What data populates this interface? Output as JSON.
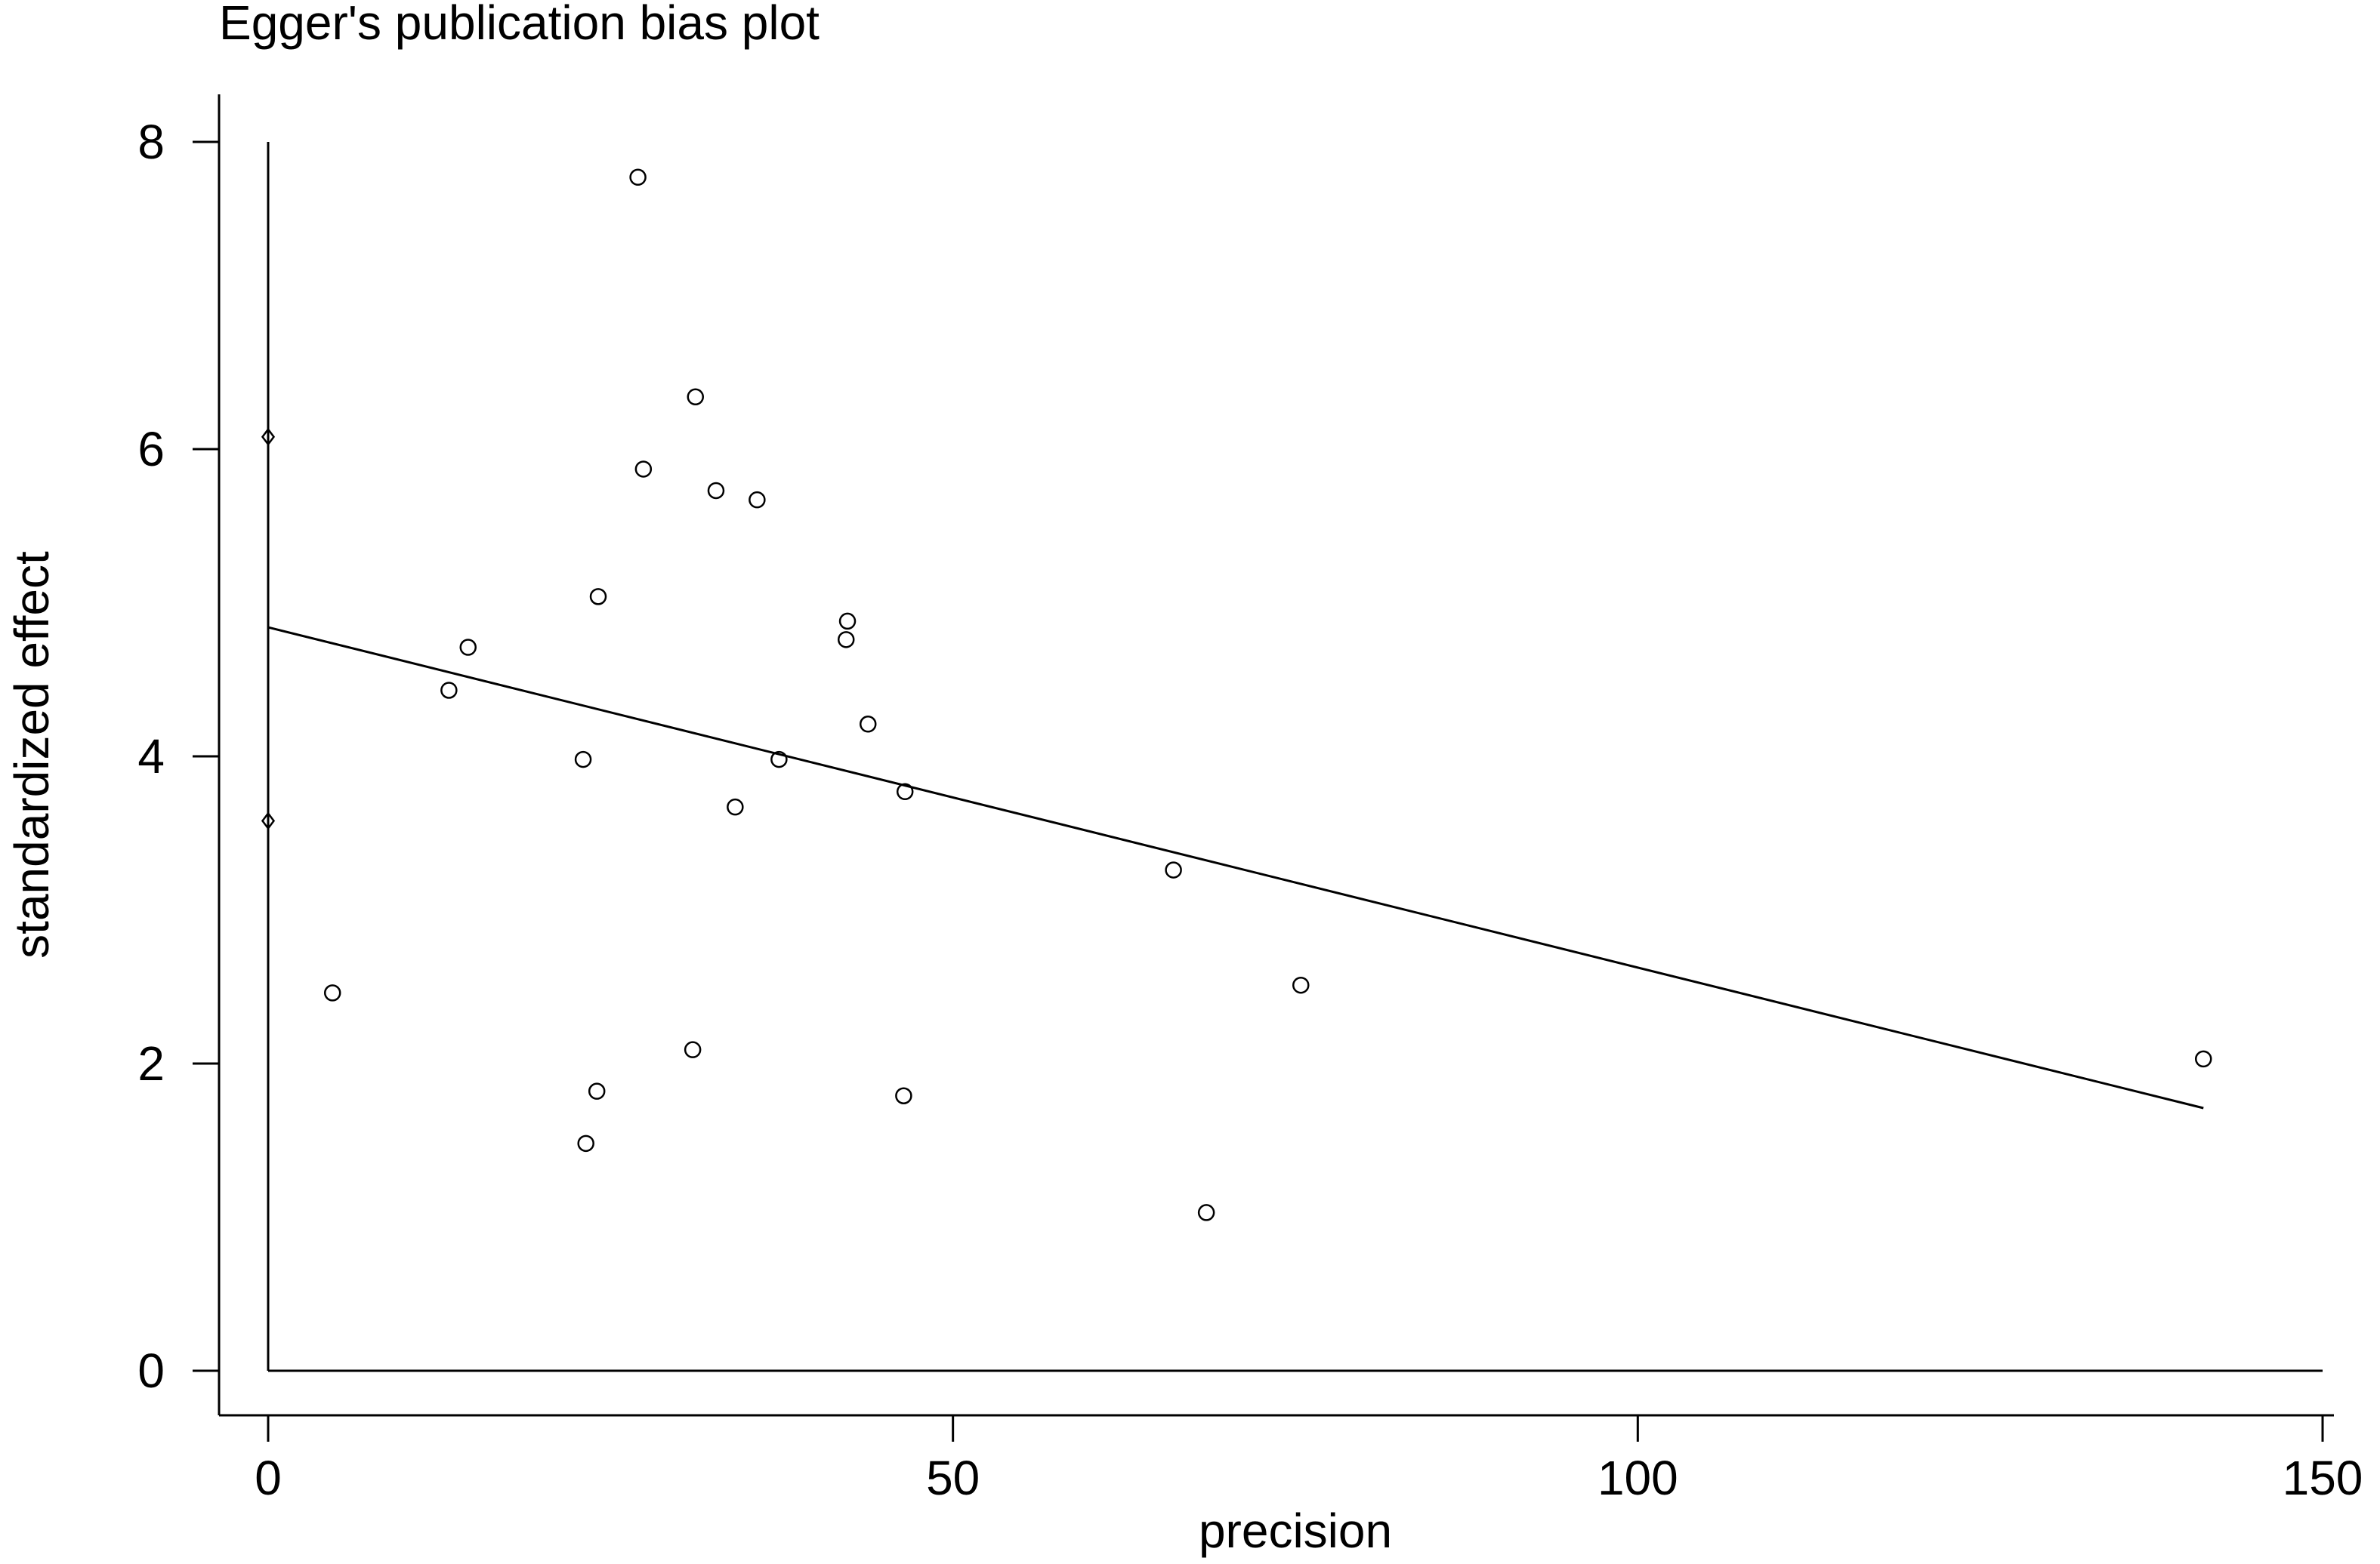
{
  "chart_data": {
    "type": "scatter",
    "title": "Egger's publication bias plot",
    "xlabel": "precision",
    "ylabel": "standardized effect",
    "xlim": [
      0,
      150
    ],
    "ylim": [
      0,
      8
    ],
    "xticks": [
      0,
      50,
      100,
      150
    ],
    "yticks": [
      0,
      2,
      4,
      6,
      8
    ],
    "xtick_labels": [
      "0",
      "50",
      "100",
      "150"
    ],
    "ytick_labels": [
      "0",
      "2",
      "4",
      "6",
      "8"
    ],
    "grid": false,
    "legend": "none",
    "series": [
      {
        "marker": "circle",
        "points": [
          {
            "x": 27.0,
            "y": 7.77
          },
          {
            "x": 31.2,
            "y": 6.34
          },
          {
            "x": 27.4,
            "y": 5.87
          },
          {
            "x": 32.7,
            "y": 5.73
          },
          {
            "x": 35.7,
            "y": 5.67
          },
          {
            "x": 24.1,
            "y": 5.04
          },
          {
            "x": 42.3,
            "y": 4.88
          },
          {
            "x": 42.2,
            "y": 4.76
          },
          {
            "x": 14.6,
            "y": 4.71
          },
          {
            "x": 13.2,
            "y": 4.43
          },
          {
            "x": 43.8,
            "y": 4.21
          },
          {
            "x": 23.0,
            "y": 3.98
          },
          {
            "x": 37.3,
            "y": 3.98
          },
          {
            "x": 46.5,
            "y": 3.77
          },
          {
            "x": 34.1,
            "y": 3.67
          },
          {
            "x": 66.1,
            "y": 3.26
          },
          {
            "x": 4.7,
            "y": 2.46
          },
          {
            "x": 75.4,
            "y": 2.51
          },
          {
            "x": 31.0,
            "y": 2.09
          },
          {
            "x": 141.3,
            "y": 2.03
          },
          {
            "x": 24.0,
            "y": 1.82
          },
          {
            "x": 46.4,
            "y": 1.79
          },
          {
            "x": 23.2,
            "y": 1.48
          },
          {
            "x": 68.5,
            "y": 1.03
          }
        ]
      },
      {
        "marker": "diamond",
        "points": [
          {
            "x": 0,
            "y": 6.08
          },
          {
            "x": 0,
            "y": 3.58
          }
        ]
      }
    ],
    "regression_line": {
      "x": [
        0,
        141.3
      ],
      "y": [
        4.84,
        1.71
      ]
    },
    "colors": {
      "marks": "#000000",
      "background": "#ffffff"
    }
  }
}
